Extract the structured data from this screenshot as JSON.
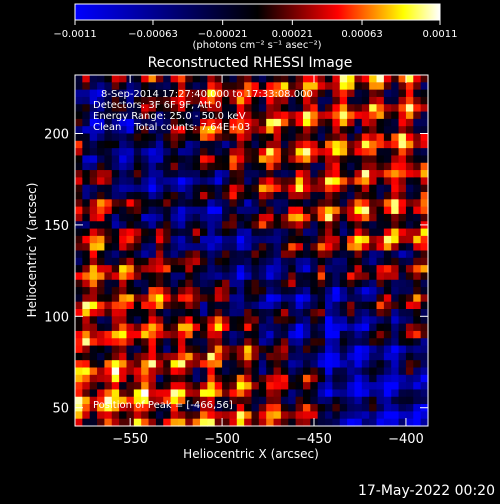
{
  "chart_data": {
    "type": "heatmap",
    "title": "Reconstructed RHESSI Image",
    "xlabel": "Heliocentric X (arcsec)",
    "ylabel": "Heliocentric Y (arcsec)",
    "xlim": [
      -580,
      -388
    ],
    "ylim": [
      40,
      232
    ],
    "x_ticks": [
      -550,
      -500,
      -450,
      -400
    ],
    "y_ticks": [
      50,
      100,
      150,
      200
    ],
    "x_tick_labels": [
      "−550",
      "−500",
      "−450",
      "−400"
    ],
    "y_tick_labels": [
      "50",
      "100",
      "150",
      "200"
    ],
    "colorbar": {
      "range": [
        -0.0011,
        0.0011
      ],
      "ticks": [
        -0.0011,
        -0.00063,
        -0.00021,
        0.00021,
        0.00063,
        0.0011
      ],
      "tick_labels": [
        "−0.0011",
        "−0.00063",
        "−0.00021",
        "0.00021",
        "0.00063",
        "0.0011"
      ],
      "units_label": "(photons cm⁻² s⁻¹ asec⁻²)",
      "colors": [
        "#0000ff",
        "#000000",
        "#ff0000",
        "#ffff00",
        "#ffffff"
      ]
    },
    "annotations": [
      "8-Sep-2014 17:27:40.000 to 17:33:08.000",
      "Detectors: 3F 6F 9F, Att 0",
      "Energy Range: 25.0 - 50.0 keV",
      "Clean    Total counts: 7.64E+03"
    ],
    "peak_label": "Position of Peak = [-466,56]",
    "peak": [
      -466,
      56
    ]
  },
  "footer": {
    "date": "17-May-2022 00:20"
  }
}
